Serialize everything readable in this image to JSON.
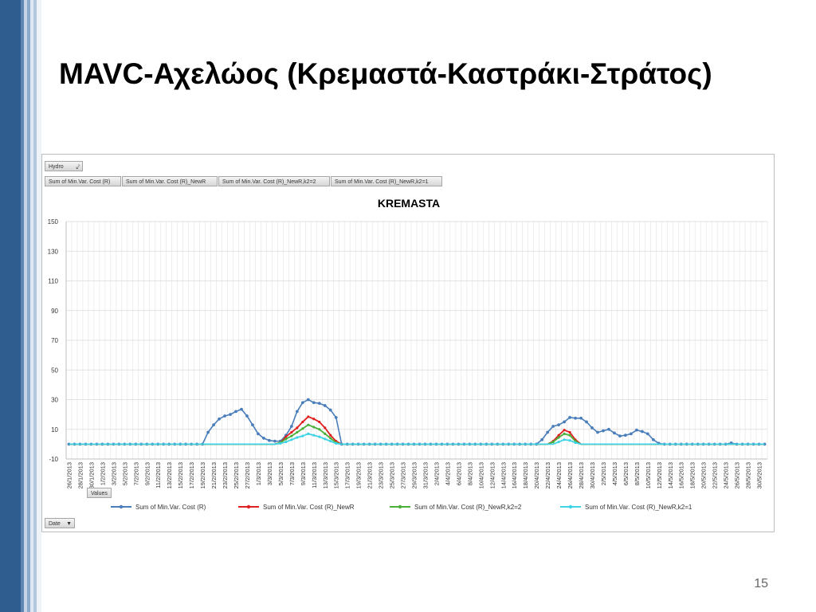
{
  "slide": {
    "title": "MAVC-Αχελώος (Κρεμαστά-Καστράκι-Στράτος)",
    "page_number": "15"
  },
  "pivot": {
    "filter_field": "Hydro",
    "filter_icon": "funnel-icon",
    "legend_fields": [
      "Sum of Min.Var. Cost (R)",
      "Sum of Min.Var. Cost (R)_NewR",
      "Sum of Min.Var. Cost (R)_NewR,k2=2",
      "Sum of Min.Var. Cost (R)_NewR,k2=1"
    ],
    "values_field": "Values",
    "axis_field": "Date",
    "axis_icon": "dropdown-arrow-icon"
  },
  "chart_data": {
    "type": "line",
    "title": "KREMASTA",
    "xlabel": "",
    "ylabel": "",
    "ylim": [
      -10,
      150
    ],
    "yticks": [
      -10,
      10,
      30,
      50,
      70,
      90,
      110,
      130,
      150
    ],
    "grid": true,
    "legend_position": "bottom",
    "x_start": "26/1/2013",
    "x_end": "31/5/2013",
    "tick_labels": [
      "26/1/2013",
      "28/1/2013",
      "30/1/2013",
      "1/2/2013",
      "3/2/2013",
      "5/2/2013",
      "7/2/2013",
      "9/2/2013",
      "11/2/2013",
      "13/2/2013",
      "15/2/2013",
      "17/2/2013",
      "19/2/2013",
      "21/2/2013",
      "23/2/2013",
      "25/2/2013",
      "27/2/2013",
      "1/3/2013",
      "3/3/2013",
      "5/3/2013",
      "7/3/2013",
      "9/3/2013",
      "11/3/2013",
      "13/3/2013",
      "15/3/2013",
      "17/3/2013",
      "19/3/2013",
      "21/3/2013",
      "23/3/2013",
      "25/3/2013",
      "27/3/2013",
      "29/3/2013",
      "31/3/2013",
      "2/4/2013",
      "4/4/2013",
      "6/4/2013",
      "8/4/2013",
      "10/4/2013",
      "12/4/2013",
      "14/4/2013",
      "16/4/2013",
      "18/4/2013",
      "20/4/2013",
      "22/4/2013",
      "24/4/2013",
      "26/4/2013",
      "28/4/2013",
      "30/4/2013",
      "2/5/2013",
      "4/5/2013",
      "6/5/2013",
      "8/5/2013",
      "10/5/2013",
      "12/5/2013",
      "14/5/2013",
      "16/5/2013",
      "18/5/2013",
      "20/5/2013",
      "22/5/2013",
      "24/5/2013",
      "26/5/2013",
      "28/5/2013",
      "30/5/2013"
    ],
    "series": [
      {
        "name": "Sum of Min.Var. Cost (R)",
        "color": "#4a7ebb",
        "points": [
          {
            "x": "19/2/2013",
            "y": 0
          },
          {
            "x": "20/2/2013",
            "y": 8
          },
          {
            "x": "21/2/2013",
            "y": 13
          },
          {
            "x": "22/2/2013",
            "y": 17
          },
          {
            "x": "23/2/2013",
            "y": 19
          },
          {
            "x": "24/2/2013",
            "y": 20
          },
          {
            "x": "25/2/2013",
            "y": 22
          },
          {
            "x": "26/2/2013",
            "y": 23.5
          },
          {
            "x": "27/2/2013",
            "y": 19
          },
          {
            "x": "28/2/2013",
            "y": 13
          },
          {
            "x": "1/3/2013",
            "y": 7
          },
          {
            "x": "2/3/2013",
            "y": 4
          },
          {
            "x": "3/3/2013",
            "y": 2.5
          },
          {
            "x": "4/3/2013",
            "y": 2
          },
          {
            "x": "5/3/2013",
            "y": 2
          },
          {
            "x": "6/3/2013",
            "y": 6
          },
          {
            "x": "7/3/2013",
            "y": 12
          },
          {
            "x": "8/3/2013",
            "y": 22
          },
          {
            "x": "9/3/2013",
            "y": 28
          },
          {
            "x": "10/3/2013",
            "y": 30
          },
          {
            "x": "11/3/2013",
            "y": 28
          },
          {
            "x": "12/3/2013",
            "y": 27.5
          },
          {
            "x": "13/3/2013",
            "y": 26
          },
          {
            "x": "14/3/2013",
            "y": 23
          },
          {
            "x": "15/3/2013",
            "y": 18
          },
          {
            "x": "16/3/2013",
            "y": 0
          },
          {
            "x": "20/4/2013",
            "y": 0
          },
          {
            "x": "21/4/2013",
            "y": 3
          },
          {
            "x": "22/4/2013",
            "y": 8
          },
          {
            "x": "23/4/2013",
            "y": 12
          },
          {
            "x": "24/4/2013",
            "y": 13
          },
          {
            "x": "25/4/2013",
            "y": 15
          },
          {
            "x": "26/4/2013",
            "y": 18
          },
          {
            "x": "27/4/2013",
            "y": 17.5
          },
          {
            "x": "28/4/2013",
            "y": 17.5
          },
          {
            "x": "29/4/2013",
            "y": 15
          },
          {
            "x": "30/4/2013",
            "y": 11
          },
          {
            "x": "1/5/2013",
            "y": 8
          },
          {
            "x": "2/5/2013",
            "y": 9
          },
          {
            "x": "3/5/2013",
            "y": 10
          },
          {
            "x": "4/5/2013",
            "y": 7.5
          },
          {
            "x": "5/5/2013",
            "y": 5.5
          },
          {
            "x": "6/5/2013",
            "y": 6
          },
          {
            "x": "7/5/2013",
            "y": 7
          },
          {
            "x": "8/5/2013",
            "y": 9.5
          },
          {
            "x": "9/5/2013",
            "y": 8.5
          },
          {
            "x": "10/5/2013",
            "y": 7
          },
          {
            "x": "11/5/2013",
            "y": 3
          },
          {
            "x": "12/5/2013",
            "y": 0.5
          },
          {
            "x": "13/5/2013",
            "y": 0
          },
          {
            "x": "24/5/2013",
            "y": 0
          },
          {
            "x": "25/5/2013",
            "y": 0.8
          },
          {
            "x": "26/5/2013",
            "y": 0
          }
        ]
      },
      {
        "name": "Sum of Min.Var. Cost (R)_NewR",
        "color": "#e02020",
        "points": [
          {
            "x": "4/3/2013",
            "y": 0
          },
          {
            "x": "5/3/2013",
            "y": 1
          },
          {
            "x": "6/3/2013",
            "y": 5
          },
          {
            "x": "7/3/2013",
            "y": 8
          },
          {
            "x": "8/3/2013",
            "y": 11
          },
          {
            "x": "9/3/2013",
            "y": 15
          },
          {
            "x": "10/3/2013",
            "y": 18.5
          },
          {
            "x": "11/3/2013",
            "y": 17
          },
          {
            "x": "12/3/2013",
            "y": 15
          },
          {
            "x": "13/3/2013",
            "y": 11
          },
          {
            "x": "14/3/2013",
            "y": 6
          },
          {
            "x": "15/3/2013",
            "y": 2
          },
          {
            "x": "16/3/2013",
            "y": 0
          },
          {
            "x": "22/4/2013",
            "y": 0
          },
          {
            "x": "23/4/2013",
            "y": 2
          },
          {
            "x": "24/4/2013",
            "y": 6
          },
          {
            "x": "25/4/2013",
            "y": 9.5
          },
          {
            "x": "26/4/2013",
            "y": 8
          },
          {
            "x": "27/4/2013",
            "y": 3
          },
          {
            "x": "28/4/2013",
            "y": 0
          }
        ]
      },
      {
        "name": "Sum of Min.Var. Cost (R)_NewR,k2=2",
        "color": "#4caf3a",
        "points": [
          {
            "x": "4/3/2013",
            "y": 0
          },
          {
            "x": "5/3/2013",
            "y": 1
          },
          {
            "x": "6/3/2013",
            "y": 3.5
          },
          {
            "x": "7/3/2013",
            "y": 5.5
          },
          {
            "x": "8/3/2013",
            "y": 8
          },
          {
            "x": "9/3/2013",
            "y": 10.5
          },
          {
            "x": "10/3/2013",
            "y": 13
          },
          {
            "x": "11/3/2013",
            "y": 11.5
          },
          {
            "x": "12/3/2013",
            "y": 10
          },
          {
            "x": "13/3/2013",
            "y": 7
          },
          {
            "x": "14/3/2013",
            "y": 4
          },
          {
            "x": "15/3/2013",
            "y": 1
          },
          {
            "x": "16/3/2013",
            "y": 0
          },
          {
            "x": "22/4/2013",
            "y": 0
          },
          {
            "x": "23/4/2013",
            "y": 1.5
          },
          {
            "x": "24/4/2013",
            "y": 4.5
          },
          {
            "x": "25/4/2013",
            "y": 7
          },
          {
            "x": "26/4/2013",
            "y": 6
          },
          {
            "x": "27/4/2013",
            "y": 2
          },
          {
            "x": "28/4/2013",
            "y": 0
          }
        ]
      },
      {
        "name": "Sum of Min.Var. Cost (R)_NewR,k2=1",
        "color": "#3fd3e6",
        "points": [
          {
            "x": "4/3/2013",
            "y": 0
          },
          {
            "x": "5/3/2013",
            "y": 0.5
          },
          {
            "x": "6/3/2013",
            "y": 1.5
          },
          {
            "x": "7/3/2013",
            "y": 3
          },
          {
            "x": "8/3/2013",
            "y": 4.5
          },
          {
            "x": "9/3/2013",
            "y": 5.5
          },
          {
            "x": "10/3/2013",
            "y": 7
          },
          {
            "x": "11/3/2013",
            "y": 6
          },
          {
            "x": "12/3/2013",
            "y": 5
          },
          {
            "x": "13/3/2013",
            "y": 3.5
          },
          {
            "x": "14/3/2013",
            "y": 2
          },
          {
            "x": "15/3/2013",
            "y": 0.5
          },
          {
            "x": "16/3/2013",
            "y": 0
          },
          {
            "x": "23/4/2013",
            "y": 0
          },
          {
            "x": "24/4/2013",
            "y": 1.5
          },
          {
            "x": "25/4/2013",
            "y": 3
          },
          {
            "x": "26/4/2013",
            "y": 2.5
          },
          {
            "x": "27/4/2013",
            "y": 1
          },
          {
            "x": "28/4/2013",
            "y": 0
          }
        ]
      }
    ]
  }
}
